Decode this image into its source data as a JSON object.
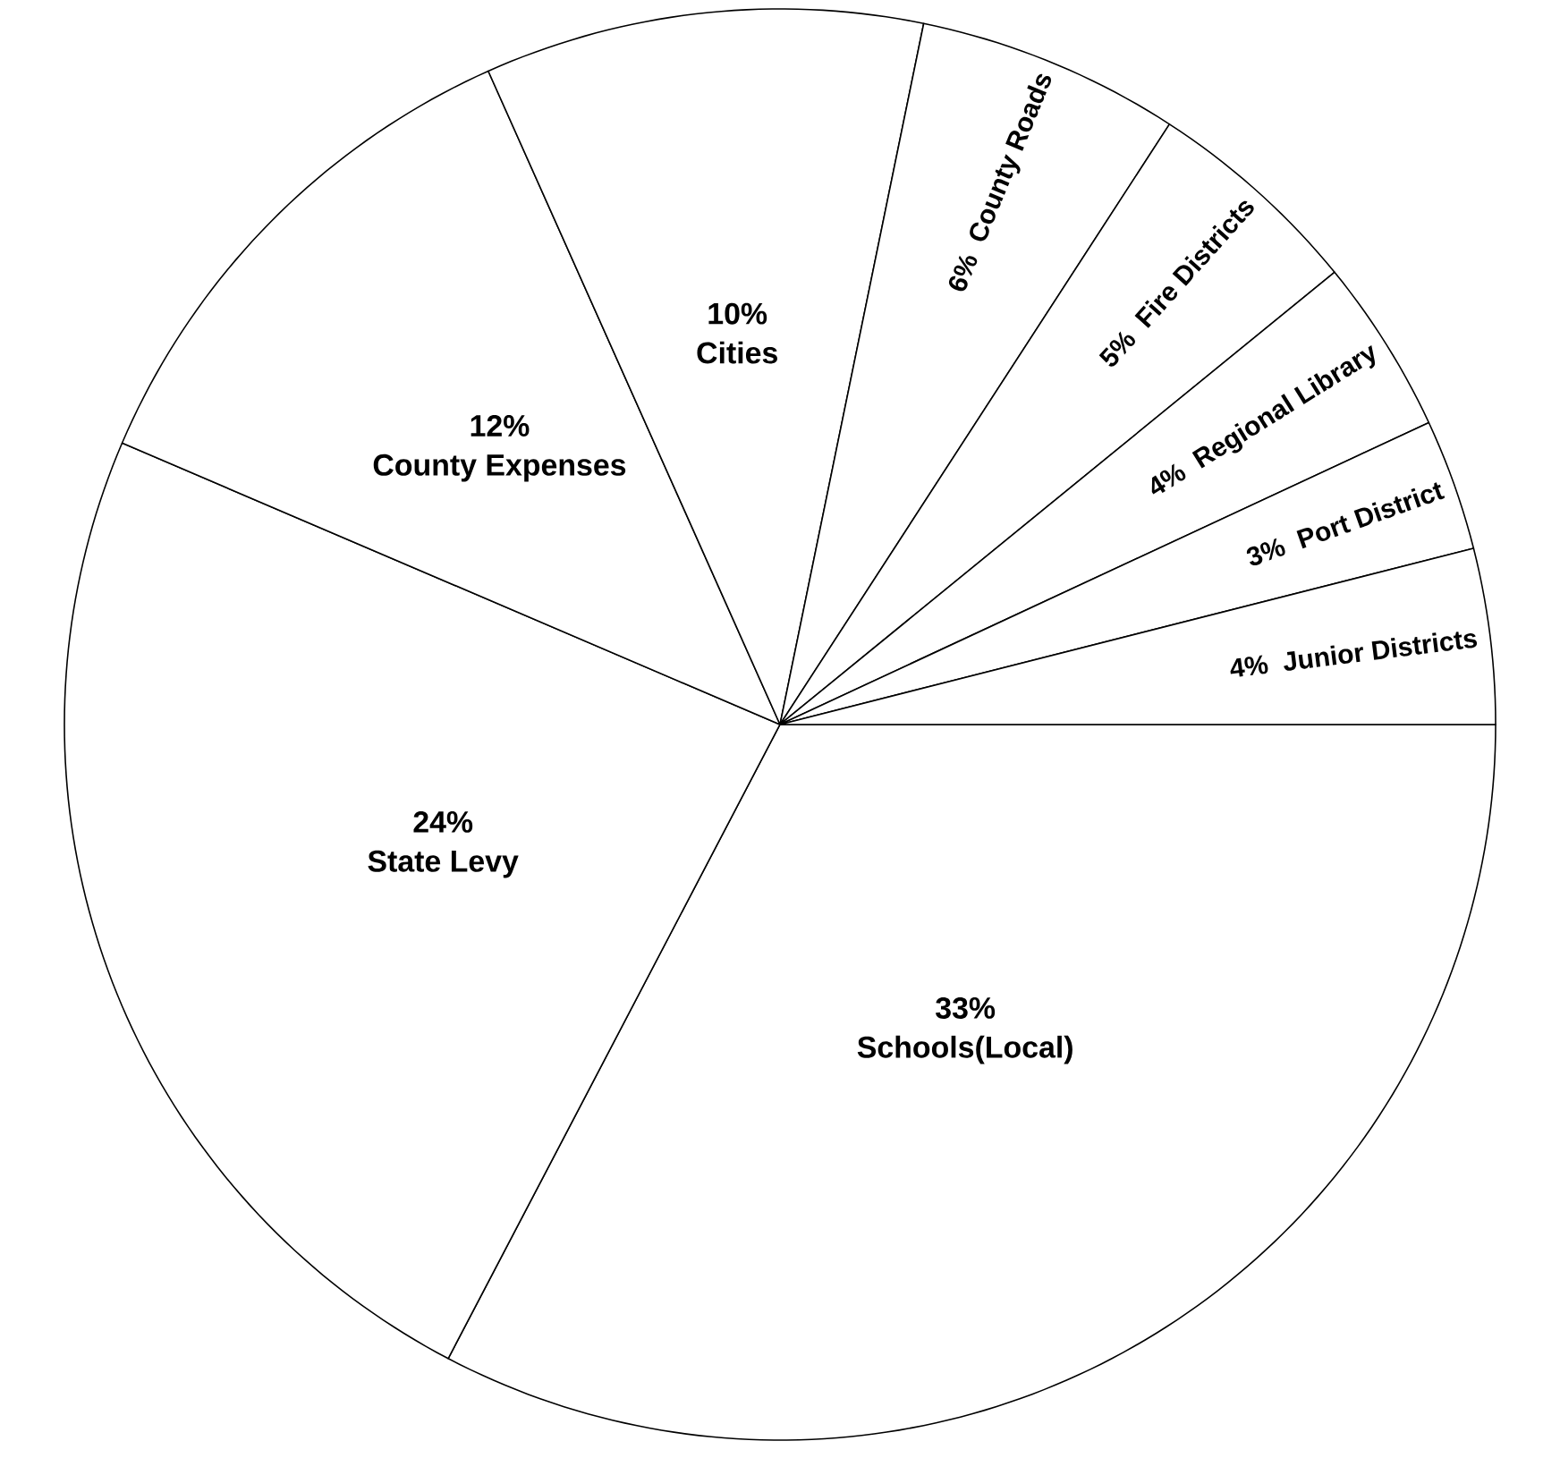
{
  "chart_data": {
    "type": "pie",
    "categories": [
      "Schools(Local)",
      "State Levy",
      "County Expenses",
      "Cities",
      "County Roads",
      "Fire Districts",
      "Regional Library",
      "Port District",
      "Junior Districts"
    ],
    "values": [
      33,
      24,
      12,
      10,
      6,
      5,
      4,
      3,
      4
    ],
    "value_labels": [
      "33%",
      "24%",
      "12%",
      "10%",
      "6%",
      "5%",
      "4%",
      "3%",
      "4%"
    ],
    "colors": [
      "#ffffff",
      "#ffffff",
      "#ffffff",
      "#ffffff",
      "#ffffff",
      "#ffffff",
      "#ffffff",
      "#ffffff",
      "#ffffff"
    ]
  }
}
